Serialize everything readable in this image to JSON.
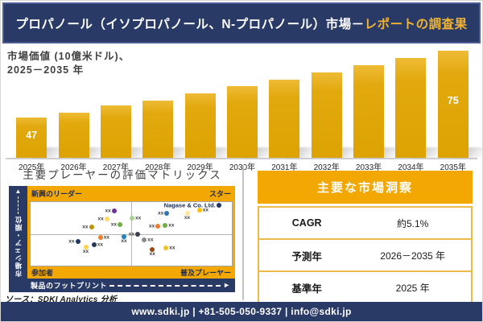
{
  "header": {
    "title_main": "プロパノール（イソプロパノール、N-プロパノール）市場－",
    "title_accent": "レポートの調査果"
  },
  "chart_subtitle": {
    "line1": "市場価値 (10億米ドル)、",
    "line2": "2025－2035 年"
  },
  "chart_data": [
    {
      "type": "bar",
      "title": "市場価値 (10億米ドル)、2025－2035 年",
      "categories": [
        "2025年",
        "2026年",
        "2027年",
        "2028年",
        "2029年",
        "2030年",
        "2031年",
        "2032年",
        "2033年",
        "2034年",
        "2035年"
      ],
      "values": [
        47,
        49,
        52,
        54,
        57,
        60,
        63,
        66,
        69,
        72,
        75
      ],
      "value_labels": [
        "47",
        "",
        "",
        "",
        "",
        "",
        "",
        "",
        "",
        "",
        "75"
      ],
      "ylabel": "10億米ドル",
      "ylim": [
        47,
        75
      ],
      "bar_color": "#e2a90e",
      "note_only_first_and_last_labeled": true
    },
    {
      "type": "scatter",
      "title": "主要プレーヤーの評価マトリックス",
      "xlabel": "製品のフットプリント",
      "ylabel": "市場シェア・順位",
      "quadrants": {
        "top_left": "新興のリーダー",
        "top_right": "スター",
        "bottom_left": "参加者",
        "bottom_right": "普及プレーヤー"
      },
      "points": [
        {
          "x": 41.5,
          "y": 13.4,
          "c": "#7030a0",
          "label": "xx",
          "pos": "l"
        },
        {
          "x": 37.9,
          "y": 26.8,
          "c": "#ffd966",
          "label": "xx",
          "pos": "l"
        },
        {
          "x": 30.2,
          "y": 39.0,
          "c": "#bf9000",
          "label": "xx",
          "pos": "l"
        },
        {
          "x": 44.4,
          "y": 35.4,
          "c": "#70ad47",
          "label": "xx",
          "pos": "l"
        },
        {
          "x": 93.5,
          "y": 5.0,
          "c": "#1f3864",
          "label": "Nagase & Co. Ltd.",
          "pos": "l",
          "named": true
        },
        {
          "x": 50.4,
          "y": 25.6,
          "c": "#a9d18e",
          "label": "xx",
          "pos": "r"
        },
        {
          "x": 67.7,
          "y": 17.1,
          "c": "#2e75b6",
          "label": "xx",
          "pos": "l"
        },
        {
          "x": 77.8,
          "y": 17.1,
          "c": "#ffe699",
          "label": "xx",
          "pos": "b"
        },
        {
          "x": 83.9,
          "y": 12.2,
          "c": "#ffc000",
          "label": "xx",
          "pos": "r"
        },
        {
          "x": 63.3,
          "y": 37.8,
          "c": "#ed7d31",
          "label": "xx",
          "pos": "l"
        },
        {
          "x": 66.9,
          "y": 36.6,
          "c": "#70ad47",
          "label": "xx",
          "pos": "r"
        },
        {
          "x": 34.7,
          "y": 56.1,
          "c": "#ed7d31",
          "label": "xx",
          "pos": "r"
        },
        {
          "x": 46.4,
          "y": 54.9,
          "c": "#2080c0",
          "label": "xx",
          "pos": "b"
        },
        {
          "x": 23.4,
          "y": 62.2,
          "c": "#1f3864",
          "label": "xx",
          "pos": "l"
        },
        {
          "x": 27.4,
          "y": 70.7,
          "c": "#ffd34d",
          "label": "xx",
          "pos": "b"
        },
        {
          "x": 31.5,
          "y": 67.1,
          "c": "#243659",
          "label": "xx",
          "pos": "r"
        },
        {
          "x": 53.2,
          "y": 51.2,
          "c": "#3b3f4e",
          "label": "xx",
          "pos": "l"
        },
        {
          "x": 56.5,
          "y": 59.8,
          "c": "#8a8a8a",
          "label": "xx",
          "pos": "r"
        },
        {
          "x": 60.5,
          "y": 74.4,
          "c": "#9e480e",
          "label": "xx",
          "pos": "b"
        },
        {
          "x": 67.3,
          "y": 72.0,
          "c": "#f2c12e",
          "label": "xx",
          "pos": "r"
        }
      ]
    },
    {
      "type": "table",
      "title": "主要な市場洞察",
      "rows": [
        {
          "label": "CAGR",
          "value": "約5.1%"
        },
        {
          "label": "予測年",
          "value": "2026－2035 年"
        },
        {
          "label": "基準年",
          "value": "2025 年"
        }
      ]
    }
  ],
  "matrix": {
    "title": "主要プレーヤーの評価マトリックス",
    "y_axis": "市場シェア・順位",
    "x_axis": "製品のフットプリント",
    "quadrant_top_left": "新興のリーダー",
    "quadrant_top_right": "スター",
    "quadrant_bottom_left": "参加者",
    "quadrant_bottom_right": "普及プレーヤー"
  },
  "insights_title": "主要な市場洞察",
  "source": "ソース：SDKI Analytics 分析",
  "footer": "www.sdki.jp | +81-505-050-9337 | info@sdki.jp",
  "colors": {
    "navy": "#293a67",
    "gold": "#f2a702",
    "bar_gold": "#e2a90e",
    "accent_text": "#f0b434"
  }
}
